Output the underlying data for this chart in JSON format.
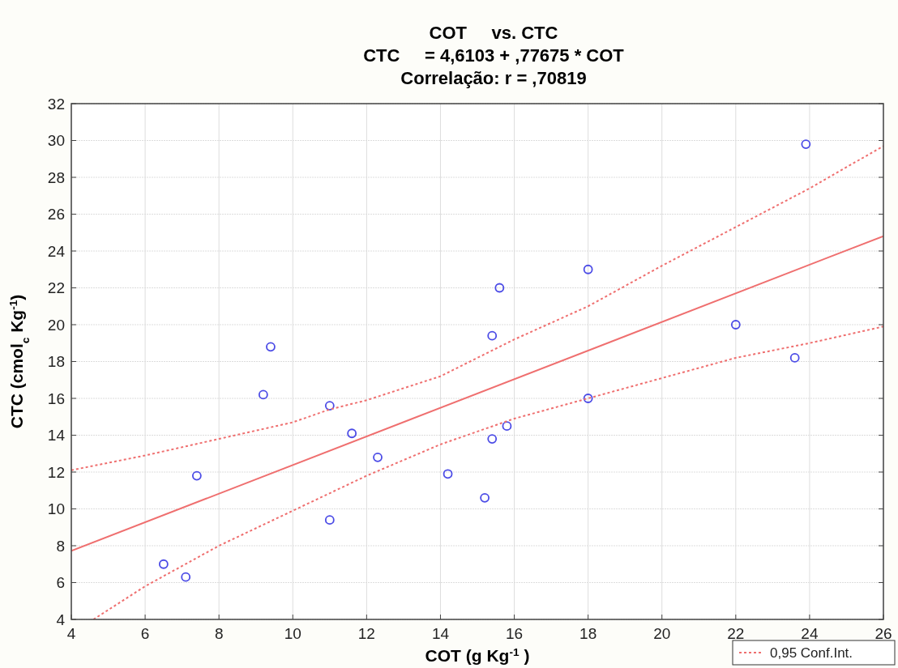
{
  "chart_data": {
    "type": "scatter",
    "title": "COT     vs. CTC",
    "subtitle": "CTC     = 4,6103 + ,77675 * COT",
    "annotations": [
      "Correlação: r = ,70819"
    ],
    "xlabel": "COT (g Kg$^{-1}$ )",
    "ylabel": "CTC (cmol$_{c}$ Kg$^{-1}$)",
    "xlim": [
      4,
      26
    ],
    "xticks": [
      4,
      6,
      8,
      10,
      12,
      14,
      16,
      18,
      20,
      22,
      24,
      26
    ],
    "ylim": [
      4,
      32
    ],
    "yticks": [
      4,
      6,
      8,
      10,
      12,
      14,
      16,
      18,
      20,
      22,
      24,
      26,
      28,
      30,
      32
    ],
    "grid": true,
    "marker": "circle",
    "legend": "bottom right",
    "series": [
      {
        "color": "#4b4be6",
        "x": [
          6.5,
          7.1,
          7.4,
          9.2,
          9.4,
          11.0,
          11.0,
          11.6,
          12.3,
          14.2,
          15.2,
          15.4,
          15.4,
          15.6,
          15.8,
          18.0,
          18.0,
          22.0,
          23.6,
          23.9
        ],
        "values": [
          7.0,
          6.3,
          11.8,
          16.2,
          18.8,
          15.6,
          9.4,
          14.1,
          12.8,
          11.9,
          10.6,
          13.8,
          19.4,
          22.0,
          14.5,
          23.0,
          16.0,
          20.0,
          18.2,
          29.8
        ]
      },
      {
        "type": "line",
        "color": "#ef6f6f",
        "line_style": "solid",
        "marker": "none",
        "x": [
          4,
          26
        ],
        "values": [
          7.72,
          24.81
        ]
      },
      {
        "type": "line",
        "name": "0,95 Conf.Int.",
        "color": "#ef6f6f",
        "line_style": "dotted",
        "marker": "none",
        "x": [
          4,
          6,
          8,
          10,
          11,
          12,
          14,
          16,
          18,
          20,
          22,
          24,
          26
        ],
        "values": [
          12.1,
          12.9,
          13.8,
          14.7,
          15.4,
          15.9,
          17.2,
          19.2,
          21.0,
          23.2,
          25.3,
          27.4,
          29.7
        ]
      },
      {
        "type": "line",
        "color": "#ef6f6f",
        "line_style": "dotted",
        "marker": "none",
        "x": [
          4.6,
          6,
          8,
          10,
          12,
          14,
          16,
          18,
          20,
          22,
          24,
          26
        ],
        "values": [
          4.0,
          5.8,
          8.0,
          9.9,
          11.8,
          13.5,
          14.9,
          16.0,
          17.1,
          18.2,
          19.0,
          19.9
        ]
      }
    ]
  }
}
